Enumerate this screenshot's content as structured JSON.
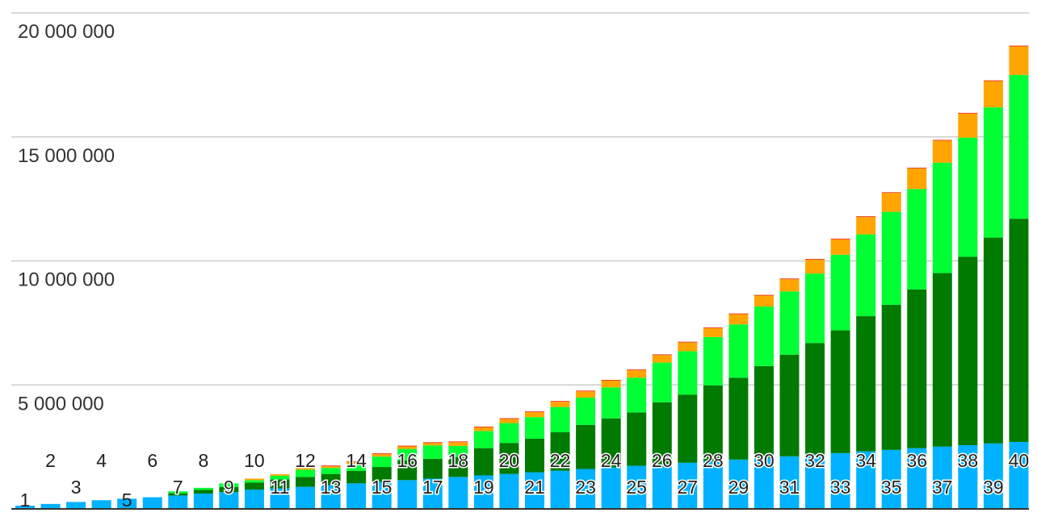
{
  "chart_data": {
    "type": "bar",
    "stacked": true,
    "grid": true,
    "legend": "none",
    "ylim": [
      0,
      20000000
    ],
    "yticks": [
      5000000,
      10000000,
      15000000,
      20000000
    ],
    "ytick_labels": [
      "5 000 000",
      "10 000 000",
      "15 000 000",
      "20 000 000"
    ],
    "categories": [
      "1",
      "2",
      "3",
      "4",
      "5",
      "6",
      "7",
      "8",
      "9",
      "10",
      "11",
      "12",
      "13",
      "14",
      "15",
      "16",
      "17",
      "18",
      "19",
      "20",
      "21",
      "22",
      "23",
      "24",
      "25",
      "26",
      "27",
      "28",
      "29",
      "30",
      "31",
      "32",
      "33",
      "34",
      "35",
      "36",
      "37",
      "38",
      "39",
      "40"
    ],
    "category_label_position": [
      "inner",
      "high",
      "low",
      "high",
      "inner",
      "high",
      "low",
      "high",
      "low",
      "high",
      "low",
      "high",
      "low",
      "high",
      "low",
      "high",
      "low",
      "high",
      "low",
      "high",
      "low",
      "high",
      "low",
      "high",
      "low",
      "high",
      "low",
      "high",
      "low",
      "high",
      "low",
      "high",
      "low",
      "high",
      "low",
      "high",
      "low",
      "high",
      "low",
      "high"
    ],
    "series": [
      {
        "color": "#00b2ff",
        "values": [
          130000,
          200000,
          280000,
          350000,
          410000,
          470000,
          540000,
          620000,
          680000,
          780000,
          830000,
          890000,
          960000,
          1030000,
          1090000,
          1160000,
          1220000,
          1290000,
          1350000,
          1410000,
          1480000,
          1540000,
          1610000,
          1670000,
          1740000,
          1800000,
          1860000,
          1930000,
          1990000,
          2060000,
          2120000,
          2190000,
          2250000,
          2320000,
          2380000,
          2450000,
          2510000,
          2570000,
          2640000,
          2700000
        ]
      },
      {
        "color": "#007a00",
        "values": [
          0,
          0,
          0,
          0,
          0,
          0,
          90000,
          150000,
          200000,
          280000,
          360000,
          400000,
          450000,
          500000,
          600000,
          800000,
          800000,
          800000,
          1100000,
          1250000,
          1350000,
          1550000,
          1780000,
          1980000,
          2150000,
          2500000,
          2750000,
          3050000,
          3300000,
          3700000,
          4100000,
          4500000,
          4950000,
          5450000,
          5850000,
          6400000,
          7000000,
          7600000,
          8300000,
          9000000
        ]
      },
      {
        "color": "#00ff33",
        "values": [
          0,
          0,
          0,
          0,
          0,
          0,
          80000,
          80000,
          150000,
          100000,
          150000,
          290000,
          240000,
          280000,
          420000,
          460000,
          540000,
          450000,
          690000,
          800000,
          870000,
          1020000,
          1100000,
          1250000,
          1400000,
          1600000,
          1750000,
          1950000,
          2150000,
          2400000,
          2550000,
          2800000,
          3050000,
          3300000,
          3750000,
          4050000,
          4450000,
          4800000,
          5250000,
          5800000
        ]
      },
      {
        "color": "#ffa500",
        "values": [
          0,
          0,
          0,
          0,
          0,
          0,
          0,
          0,
          0,
          60000,
          60000,
          60000,
          70000,
          80000,
          100000,
          100000,
          100000,
          150000,
          150000,
          170000,
          200000,
          210000,
          250000,
          270000,
          300000,
          300000,
          350000,
          360000,
          410000,
          440000,
          490000,
          560000,
          620000,
          700000,
          760000,
          830000,
          890000,
          970000,
          1060000,
          1150000
        ]
      },
      {
        "color": "#e8341c",
        "values": [
          0,
          0,
          0,
          0,
          0,
          0,
          0,
          0,
          0,
          0,
          0,
          30000,
          30000,
          30000,
          30000,
          30000,
          30000,
          30000,
          30000,
          30000,
          30000,
          30000,
          30000,
          30000,
          30000,
          30000,
          30000,
          30000,
          30000,
          30000,
          30000,
          30000,
          30000,
          30000,
          30000,
          30000,
          30000,
          30000,
          30000,
          30000
        ]
      }
    ]
  }
}
